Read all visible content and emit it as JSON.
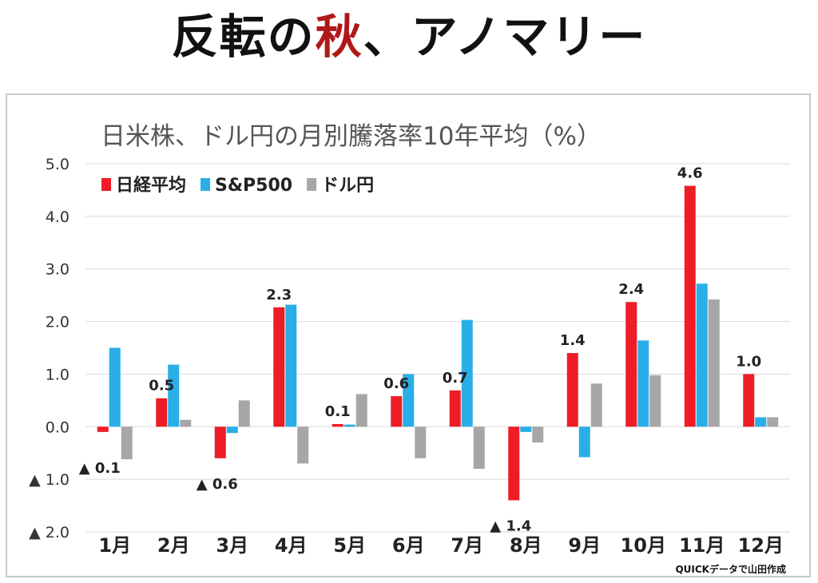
{
  "header": {
    "title_part1": "反転の",
    "title_accent": "秋",
    "title_part2": "、アノマリー",
    "accent_color": "#b01818"
  },
  "footer": {
    "credit": "QUICKデータで山田作成"
  },
  "chart_data": {
    "type": "bar",
    "title": "日米株、ドル円の月別騰落率10年平均（%）",
    "categories": [
      "1月",
      "2月",
      "3月",
      "4月",
      "5月",
      "6月",
      "7月",
      "8月",
      "9月",
      "10月",
      "11月",
      "12月"
    ],
    "series": [
      {
        "name": "日経平均",
        "color": "#ee1c25",
        "values": [
          -0.1,
          0.54,
          -0.6,
          2.27,
          0.05,
          0.58,
          0.69,
          -1.4,
          1.4,
          2.37,
          4.58,
          1.0
        ]
      },
      {
        "name": "S&P500",
        "color": "#29aee8",
        "values": [
          1.5,
          1.18,
          -0.12,
          2.32,
          0.04,
          1.0,
          2.03,
          -0.1,
          -0.58,
          1.64,
          2.72,
          0.18
        ]
      },
      {
        "name": "ドル円",
        "color": "#a6a6a6",
        "values": [
          -0.62,
          0.13,
          0.5,
          -0.7,
          0.62,
          -0.6,
          -0.8,
          -0.3,
          0.82,
          0.98,
          2.42,
          0.18
        ]
      }
    ],
    "data_labels": [
      {
        "index": 0,
        "text": "▲ 0.1"
      },
      {
        "index": 1,
        "text": "0.5"
      },
      {
        "index": 2,
        "text": "▲ 0.6"
      },
      {
        "index": 3,
        "text": "2.3"
      },
      {
        "index": 4,
        "text": "0.1"
      },
      {
        "index": 5,
        "text": "0.6"
      },
      {
        "index": 6,
        "text": "0.7"
      },
      {
        "index": 7,
        "text": "▲ 1.4"
      },
      {
        "index": 8,
        "text": "1.4"
      },
      {
        "index": 9,
        "text": "2.4"
      },
      {
        "index": 10,
        "text": "4.6"
      },
      {
        "index": 11,
        "text": "1.0"
      }
    ],
    "y_ticks": [
      {
        "value": 5,
        "label": "5.0"
      },
      {
        "value": 4,
        "label": "4.0"
      },
      {
        "value": 3,
        "label": "3.0"
      },
      {
        "value": 2,
        "label": "2.0"
      },
      {
        "value": 1,
        "label": "1.0"
      },
      {
        "value": 0,
        "label": "0.0"
      },
      {
        "value": -1,
        "label": "▲ 1.0"
      },
      {
        "value": -2,
        "label": "▲ 2.0"
      }
    ],
    "ylim": [
      -2,
      5
    ],
    "grid": true,
    "legend_position": "top-left"
  }
}
